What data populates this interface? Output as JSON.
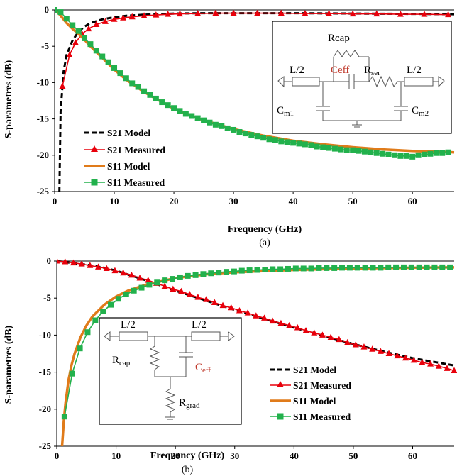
{
  "chart_data": [
    {
      "type": "line",
      "caption": "(a)",
      "xlabel": "Frequency (GHz)",
      "ylabel": "S-parametres (dB)",
      "xlim": [
        0,
        67
      ],
      "ylim": [
        -25,
        0
      ],
      "xticks": [
        0,
        10,
        20,
        30,
        40,
        50,
        60
      ],
      "yticks": [
        0,
        -5,
        -10,
        -15,
        -20,
        -25
      ],
      "grid": false,
      "legend_position": "bottom-left",
      "series": [
        {
          "name": "S21 Model",
          "style": "dashed",
          "color": "#000000",
          "marker": "none",
          "x": [
            0.8,
            1,
            1.5,
            2,
            3,
            4,
            5,
            6,
            8,
            10,
            12,
            15,
            20,
            25,
            30,
            40,
            50,
            60,
            67
          ],
          "y": [
            -25,
            -14,
            -8.5,
            -6.2,
            -4.2,
            -3.0,
            -2.3,
            -1.8,
            -1.3,
            -1.0,
            -0.8,
            -0.65,
            -0.5,
            -0.45,
            -0.45,
            -0.45,
            -0.5,
            -0.55,
            -0.6
          ]
        },
        {
          "name": "S21 Measured",
          "style": "solid",
          "color": "#e8000b",
          "marker": "triangle",
          "x": [
            1.3,
            2.5,
            3.5,
            4.6,
            5.7,
            7,
            8.5,
            10,
            11.5,
            13,
            15,
            17,
            19,
            21,
            24,
            27,
            30,
            34,
            38,
            42,
            46,
            50,
            54,
            58,
            62,
            66
          ],
          "y": [
            -10.5,
            -6.2,
            -4.5,
            -3.3,
            -2.6,
            -2.0,
            -1.6,
            -1.3,
            -1.1,
            -0.95,
            -0.8,
            -0.7,
            -0.6,
            -0.55,
            -0.5,
            -0.45,
            -0.45,
            -0.45,
            -0.45,
            -0.5,
            -0.5,
            -0.55,
            -0.55,
            -0.6,
            -0.6,
            -0.65
          ]
        },
        {
          "name": "S11 Model",
          "style": "solid",
          "color": "#e07b1a",
          "marker": "none",
          "x": [
            0,
            0.5,
            1,
            2,
            3,
            4,
            5,
            6,
            8,
            10,
            12,
            15,
            20,
            25,
            30,
            35,
            40,
            45,
            50,
            55,
            60,
            67
          ],
          "y": [
            0,
            -0.3,
            -0.8,
            -1.8,
            -2.6,
            -3.3,
            -4.1,
            -5.0,
            -6.6,
            -8.2,
            -9.6,
            -11.3,
            -13.6,
            -15.2,
            -16.4,
            -17.3,
            -18.0,
            -18.5,
            -18.9,
            -19.2,
            -19.4,
            -19.6
          ]
        },
        {
          "name": "S11 Measured",
          "style": "solid",
          "color": "#22b14c",
          "marker": "square",
          "x": [
            0,
            1,
            2,
            3,
            4,
            5,
            6,
            7,
            8,
            9,
            10,
            11,
            12,
            13,
            14,
            15,
            16,
            17,
            18,
            19,
            20,
            21,
            22,
            23,
            24,
            25,
            26,
            27,
            28,
            29,
            30,
            31,
            32,
            33,
            34,
            35,
            36,
            37,
            38,
            39,
            40,
            41,
            42,
            43,
            44,
            45,
            46,
            47,
            48,
            49,
            50,
            51,
            52,
            53,
            54,
            55,
            56,
            57,
            58,
            59,
            60,
            61,
            62,
            63,
            64,
            65,
            66
          ],
          "y": [
            0,
            -0.3,
            -1.2,
            -2.1,
            -2.9,
            -3.9,
            -4.7,
            -5.6,
            -6.4,
            -7.2,
            -8.0,
            -8.7,
            -9.4,
            -10.1,
            -10.6,
            -11.2,
            -11.7,
            -12.2,
            -12.7,
            -13.1,
            -13.5,
            -13.9,
            -14.3,
            -14.6,
            -14.9,
            -15.2,
            -15.5,
            -15.8,
            -16.0,
            -16.3,
            -16.5,
            -16.8,
            -17.0,
            -17.2,
            -17.4,
            -17.6,
            -17.8,
            -17.9,
            -18.1,
            -18.2,
            -18.3,
            -18.4,
            -18.5,
            -18.6,
            -18.8,
            -18.9,
            -19.0,
            -19.1,
            -19.2,
            -19.3,
            -19.3,
            -19.4,
            -19.5,
            -19.6,
            -19.7,
            -19.8,
            -19.9,
            -20.0,
            -20.1,
            -20.1,
            -20.2,
            -20.0,
            -19.9,
            -19.8,
            -19.7,
            -19.7,
            -19.6
          ]
        }
      ],
      "inset": {
        "labels": [
          "Rcap",
          "L/2",
          "Ceff",
          "R",
          "ser",
          "L/2",
          "C",
          "m1",
          "C",
          "m2"
        ]
      }
    },
    {
      "type": "line",
      "caption": "(b)",
      "xlabel": "Frequency (GHz)",
      "ylabel": "S-parametres (dB)",
      "xlim": [
        0,
        67
      ],
      "ylim": [
        -25,
        0
      ],
      "xticks": [
        0,
        10,
        20,
        30,
        40,
        50,
        60
      ],
      "yticks": [
        0,
        -5,
        -10,
        -15,
        -20,
        -25
      ],
      "grid": false,
      "legend_position": "bottom-right",
      "series": [
        {
          "name": "S21 Model",
          "style": "dashed",
          "color": "#000000",
          "marker": "none",
          "x": [
            0,
            2,
            5,
            8,
            10,
            15,
            20,
            25,
            30,
            35,
            40,
            45,
            50,
            55,
            60,
            67
          ],
          "y": [
            0,
            -0.2,
            -0.5,
            -0.9,
            -1.3,
            -2.6,
            -4.0,
            -5.3,
            -6.6,
            -7.8,
            -9.0,
            -10.1,
            -11.2,
            -12.2,
            -13.1,
            -14.1
          ]
        },
        {
          "name": "S21 Measured",
          "style": "solid",
          "color": "#e8000b",
          "marker": "triangle",
          "x": [
            0,
            1.4,
            2.8,
            4.2,
            5.6,
            7,
            8.4,
            9.8,
            11.2,
            12.6,
            14,
            15.4,
            16.8,
            18.2,
            19.6,
            21,
            22.4,
            23.8,
            25.2,
            26.6,
            28,
            29.4,
            30.8,
            32.2,
            33.6,
            35,
            36.4,
            37.8,
            39.2,
            40.6,
            42,
            43.4,
            44.8,
            46.2,
            47.6,
            49,
            50.4,
            51.8,
            53.2,
            54.6,
            56,
            57.4,
            58.8,
            60.2,
            61.6,
            63,
            64.4,
            65.8,
            67
          ],
          "y": [
            0,
            -0.1,
            -0.25,
            -0.4,
            -0.6,
            -0.8,
            -1.0,
            -1.3,
            -1.6,
            -1.9,
            -2.3,
            -2.6,
            -3.0,
            -3.4,
            -3.8,
            -4.1,
            -4.5,
            -4.9,
            -5.2,
            -5.6,
            -6.0,
            -6.3,
            -6.7,
            -7.0,
            -7.4,
            -7.7,
            -8.1,
            -8.4,
            -8.7,
            -9.0,
            -9.4,
            -9.7,
            -10.0,
            -10.3,
            -10.6,
            -11.0,
            -11.3,
            -11.6,
            -11.9,
            -12.2,
            -12.5,
            -12.8,
            -13.1,
            -13.4,
            -13.7,
            -13.9,
            -14.2,
            -14.5,
            -14.8
          ]
        },
        {
          "name": "S11 Model",
          "style": "solid",
          "color": "#e07b1a",
          "marker": "none",
          "x": [
            0.9,
            1.2,
            1.5,
            2,
            2.5,
            3,
            4,
            5,
            6,
            8,
            10,
            12,
            15,
            20,
            25,
            30,
            40,
            50,
            60,
            67
          ],
          "y": [
            -25,
            -21.5,
            -19,
            -16,
            -14,
            -12.5,
            -10.3,
            -8.7,
            -7.5,
            -5.9,
            -4.8,
            -4.0,
            -3.2,
            -2.3,
            -1.8,
            -1.5,
            -1.2,
            -1.0,
            -0.9,
            -0.85
          ]
        },
        {
          "name": "S11 Measured",
          "style": "solid",
          "color": "#22b14c",
          "marker": "square",
          "x": [
            1.3,
            2.6,
            3.9,
            5.2,
            6.5,
            7.8,
            9.1,
            10.4,
            11.7,
            13,
            14.3,
            15.6,
            16.9,
            18.2,
            19.5,
            20.8,
            22.1,
            23.4,
            24.7,
            26,
            27.3,
            28.6,
            29.9,
            31.2,
            32.5,
            33.8,
            35.1,
            36.4,
            37.7,
            39,
            40.3,
            41.6,
            42.9,
            44.2,
            45.5,
            46.8,
            48.1,
            49.4,
            50.7,
            52,
            53.3,
            54.6,
            55.9,
            57.2,
            58.5,
            59.8,
            61.1,
            62.4,
            63.7,
            65,
            66.3
          ],
          "y": [
            -21,
            -15.2,
            -11.8,
            -9.6,
            -8.0,
            -6.8,
            -5.9,
            -5.1,
            -4.5,
            -4.0,
            -3.6,
            -3.2,
            -2.9,
            -2.6,
            -2.4,
            -2.2,
            -2.0,
            -1.9,
            -1.75,
            -1.65,
            -1.55,
            -1.45,
            -1.4,
            -1.3,
            -1.25,
            -1.2,
            -1.15,
            -1.1,
            -1.1,
            -1.05,
            -1.0,
            -1.0,
            -1.0,
            -0.95,
            -0.95,
            -0.95,
            -0.9,
            -0.9,
            -0.9,
            -0.9,
            -0.9,
            -0.9,
            -0.85,
            -0.85,
            -0.85,
            -0.85,
            -0.85,
            -0.85,
            -0.85,
            -0.85,
            -0.85
          ]
        }
      ],
      "inset": {
        "labels": [
          "L/2",
          "L/2",
          "R",
          "cap",
          "C",
          "eff",
          "R",
          "grad"
        ]
      }
    }
  ]
}
